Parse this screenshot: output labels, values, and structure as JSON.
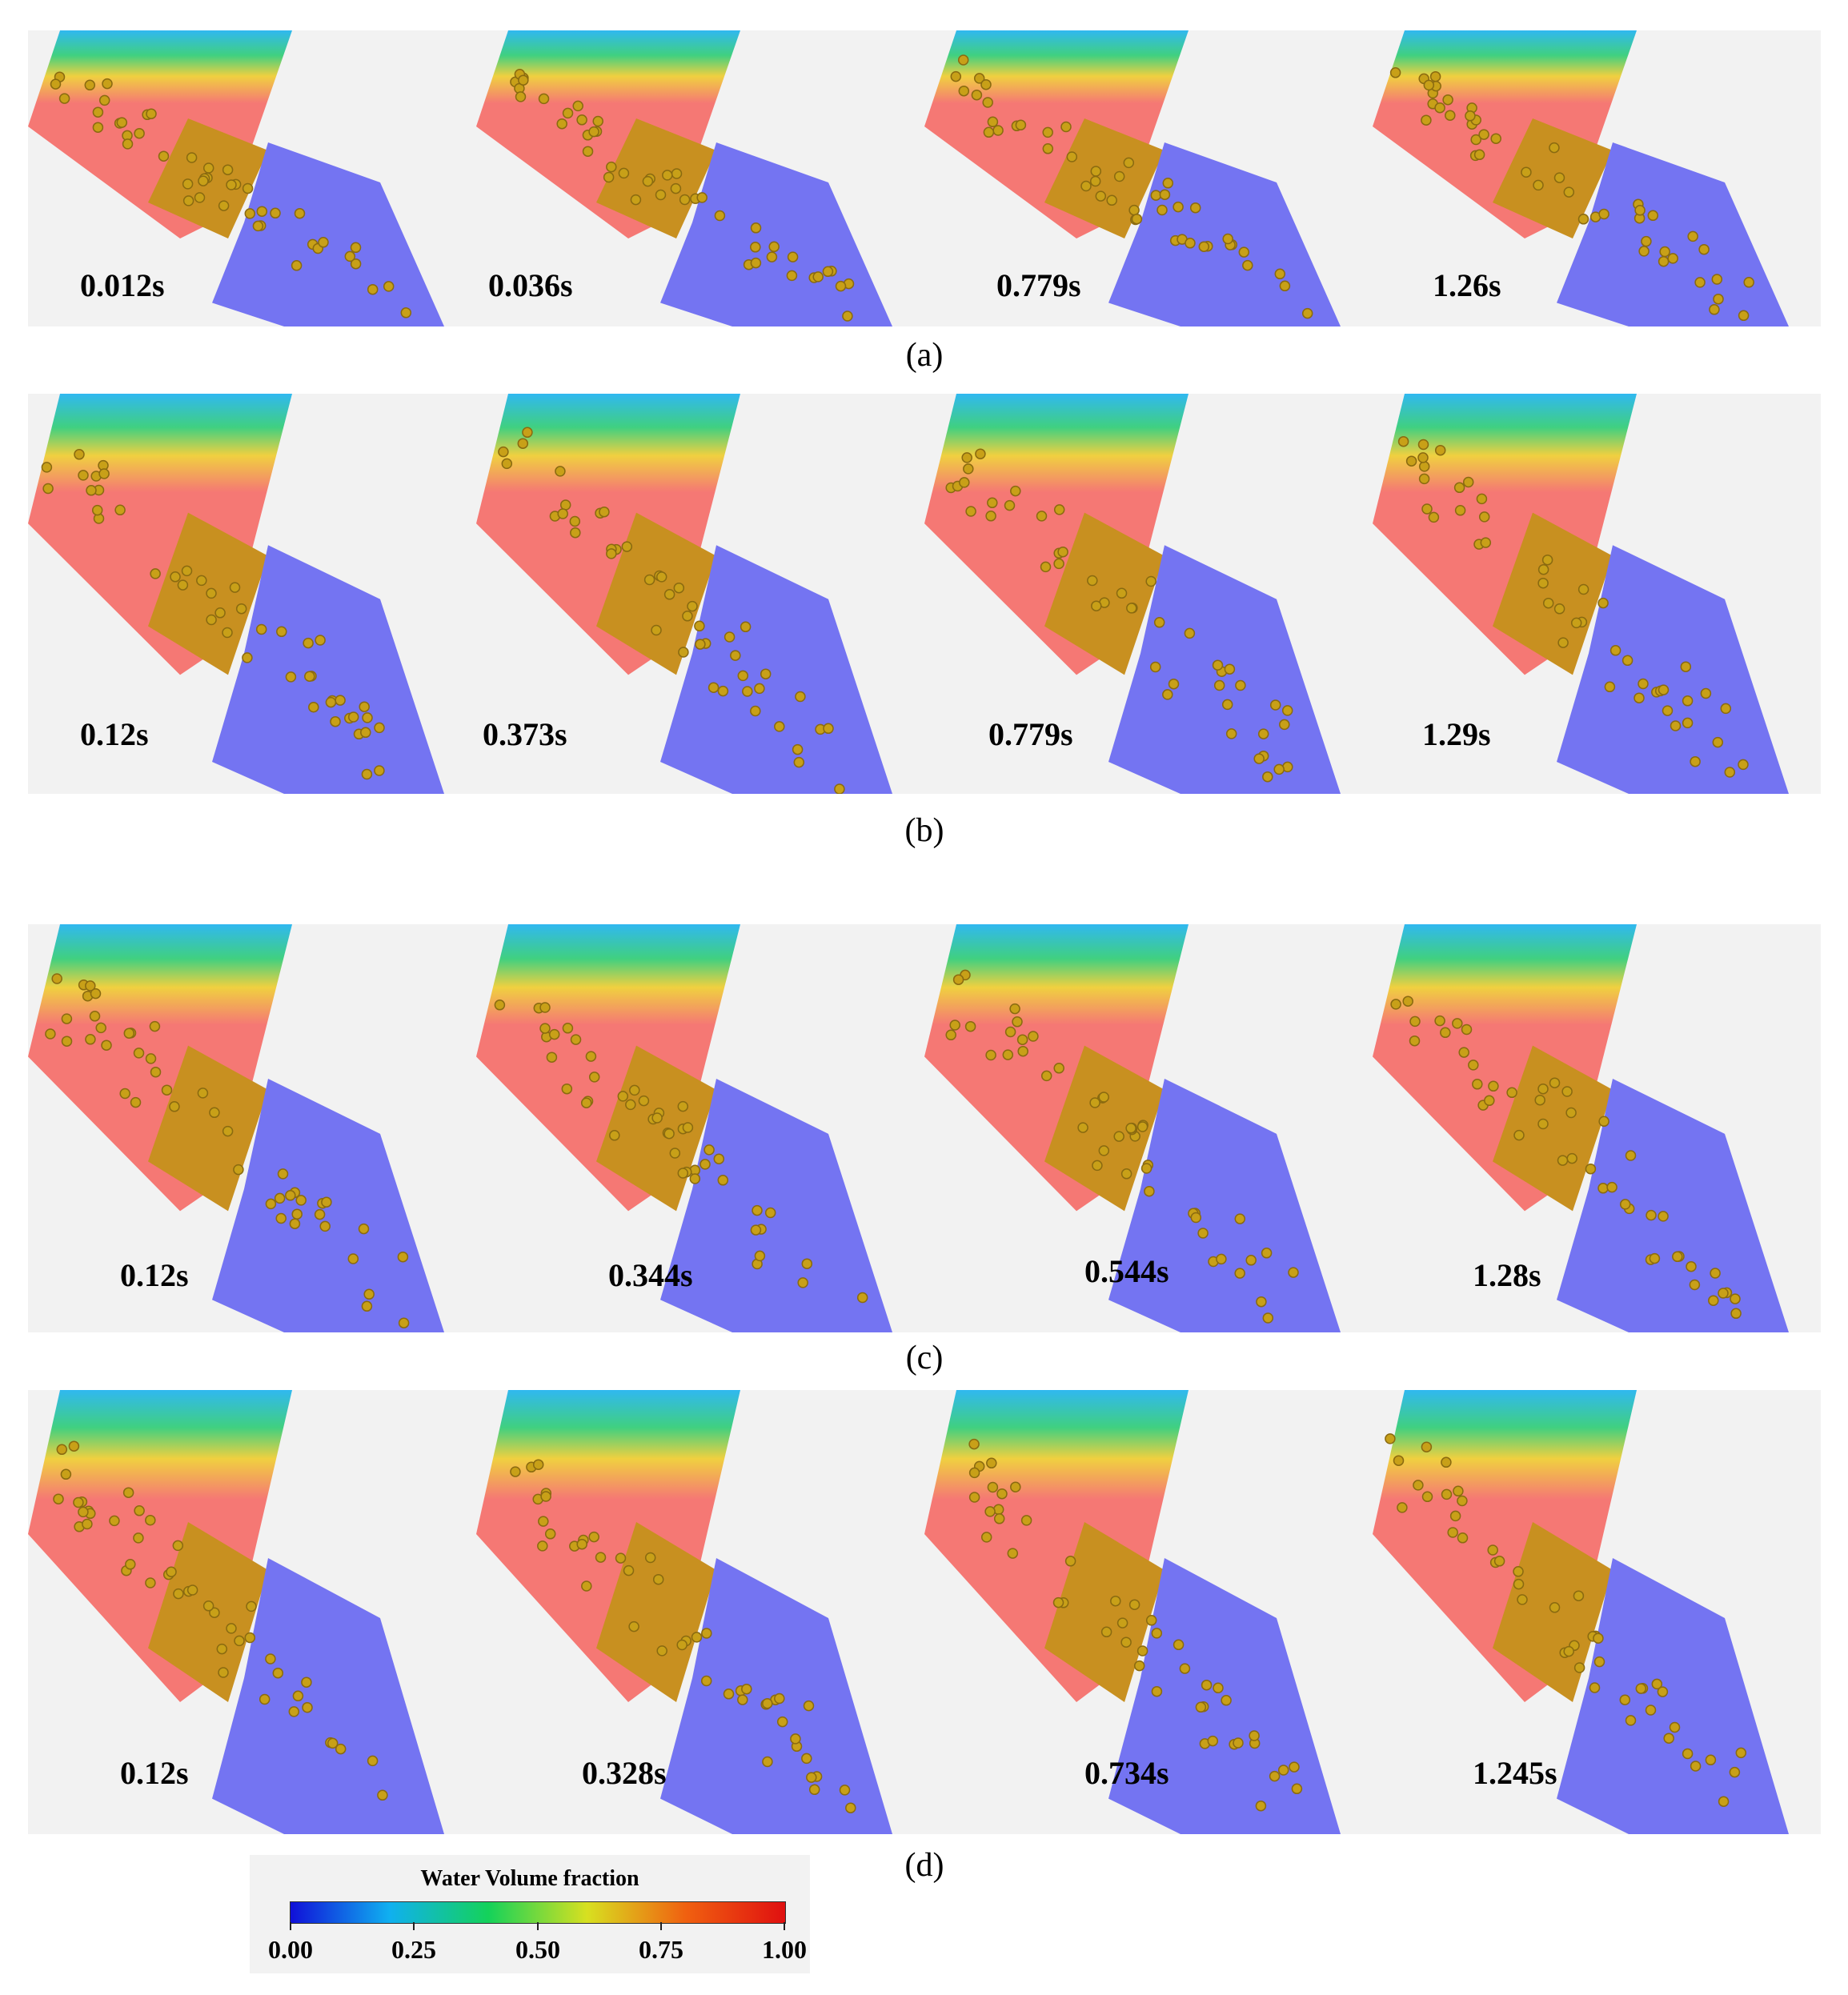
{
  "figure": {
    "rows": [
      {
        "id": "a",
        "caption": "(a)",
        "times": [
          "0.012s",
          "0.036s",
          "0.779s",
          "1.26s"
        ]
      },
      {
        "id": "b",
        "caption": "(b)",
        "times": [
          "0.12s",
          "0.373s",
          "0.779s",
          "1.29s"
        ]
      },
      {
        "id": "c",
        "caption": "(c)",
        "times": [
          "0.12s",
          "0.344s",
          "0.544s",
          "1.28s"
        ]
      },
      {
        "id": "d",
        "caption": "(d)",
        "times": [
          "0.12s",
          "0.328s",
          "0.734s",
          "1.245s"
        ]
      }
    ],
    "legend": {
      "title": "Water Volume fraction",
      "ticks": [
        "0.00",
        "0.25",
        "0.50",
        "0.75",
        "1.00"
      ]
    }
  },
  "colors": {
    "upper_chamber": "#f57874",
    "lower_chamber": "#7474f2",
    "particles": "#c8a018",
    "background": "#f2f2f2"
  }
}
